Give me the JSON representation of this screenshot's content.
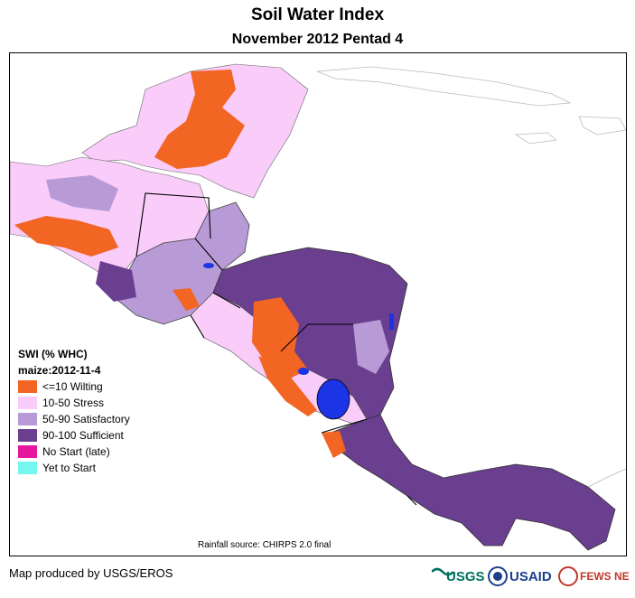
{
  "header": {
    "title": "Soil Water Index",
    "subtitle": "November 2012 Pentad 4"
  },
  "legend": {
    "title": "SWI (% WHC)",
    "subtitle": "maize:2012-11-4",
    "items": [
      {
        "label": "<=10 Wilting",
        "color": "#f26522"
      },
      {
        "label": "10-50 Stress",
        "color": "#f9ccf9"
      },
      {
        "label": "50-90 Satisfactory",
        "color": "#b79ad6"
      },
      {
        "label": "90-100 Sufficient",
        "color": "#6a3f8f"
      },
      {
        "label": "No Start (late)",
        "color": "#e6179e"
      },
      {
        "label": "Yet to Start",
        "color": "#73f7ee"
      }
    ]
  },
  "map": {
    "water_color": "#1a34e6",
    "source_note": "Rainfall source: CHIRPS 2.0 final"
  },
  "footer": {
    "credit": "Map produced by USGS/EROS",
    "logos": {
      "usgs": "USGS",
      "usaid": "USAID",
      "fewsnet": "FEWS NET"
    }
  }
}
